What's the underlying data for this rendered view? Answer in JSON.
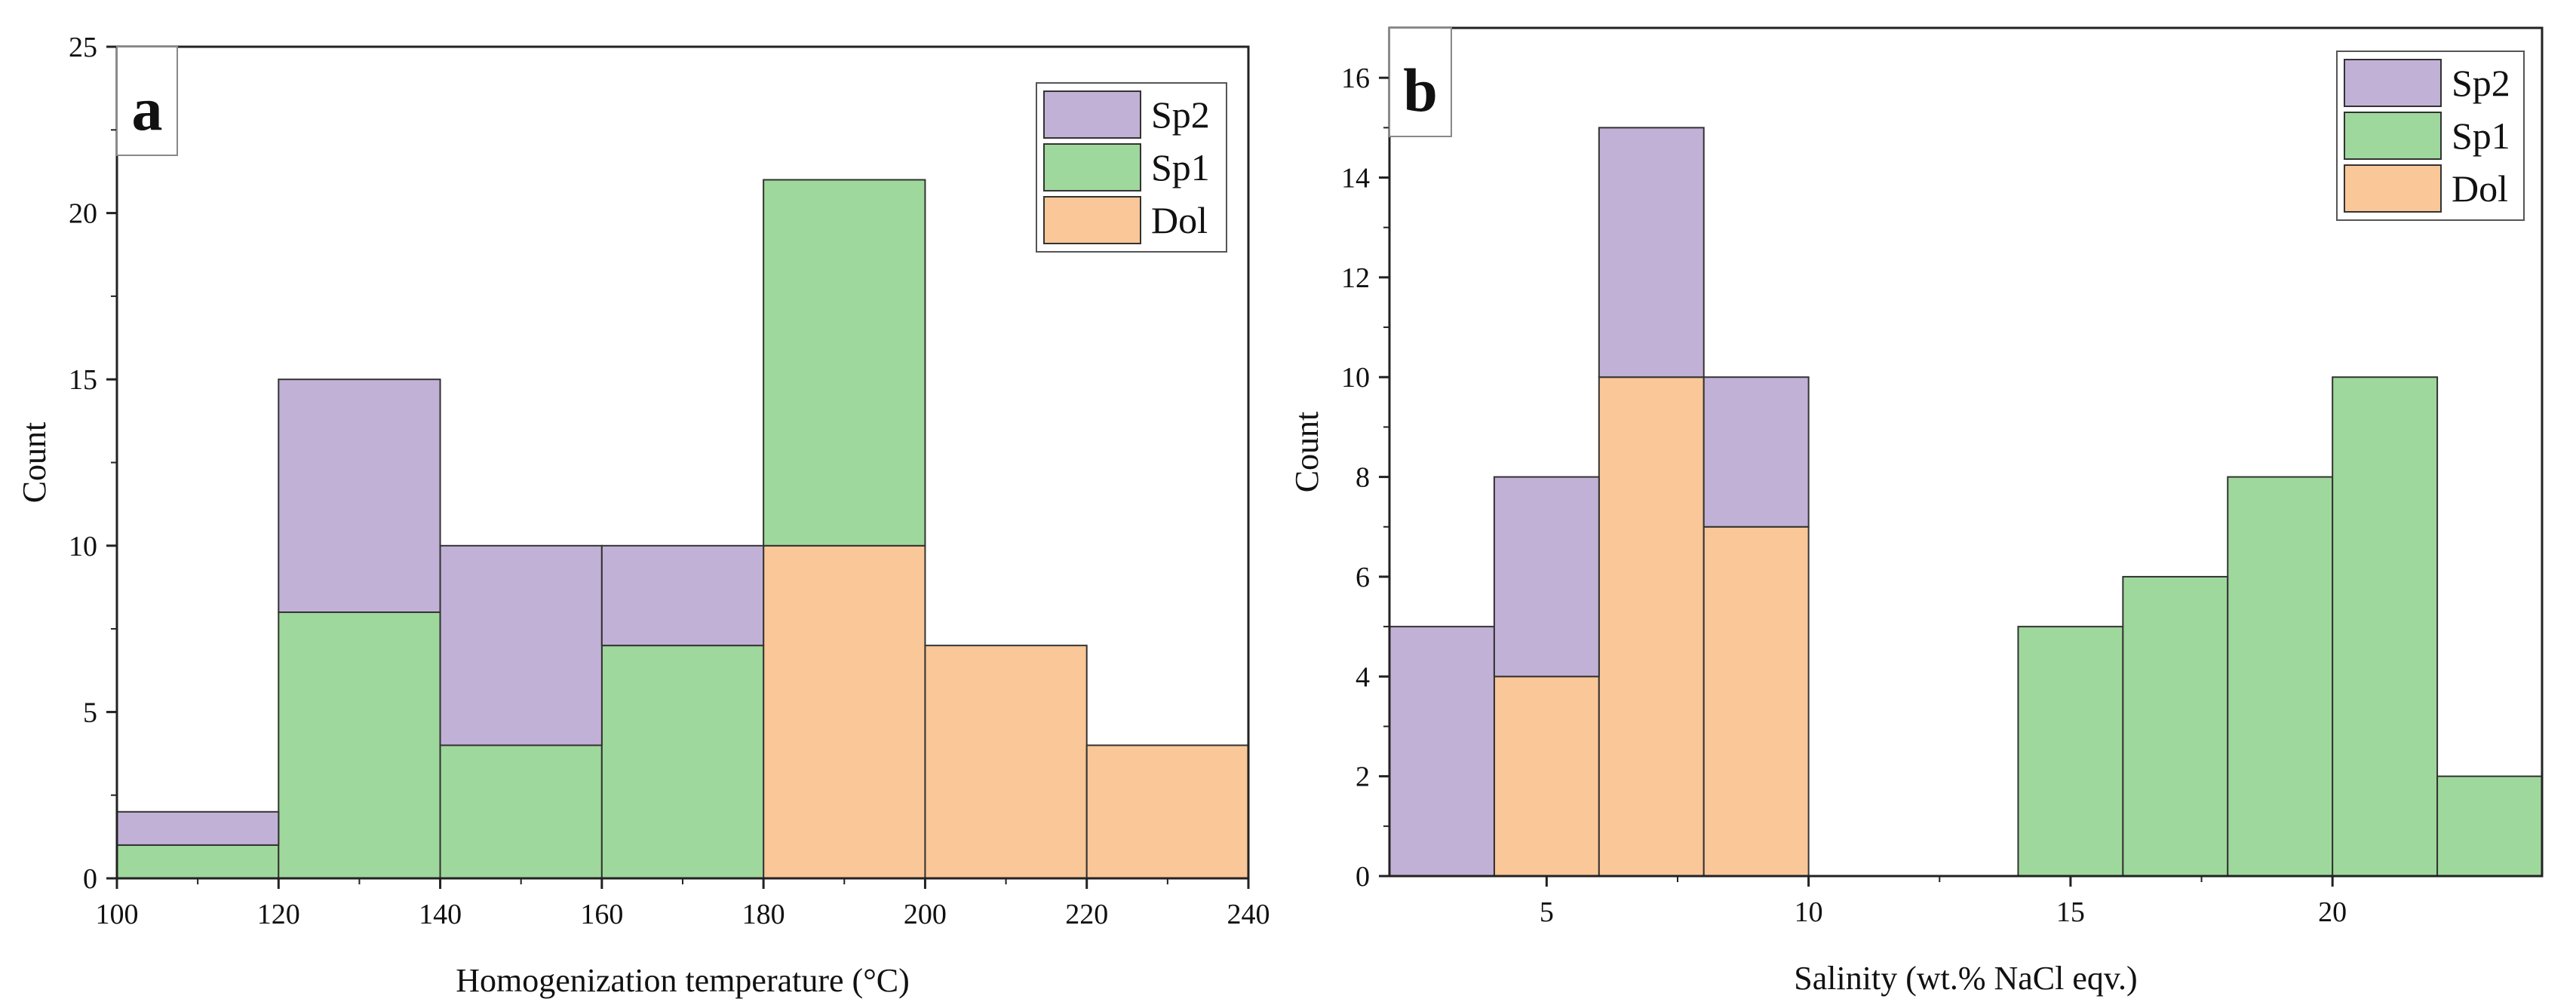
{
  "colors": {
    "Sp2": "#c2b1d6",
    "Sp1": "#9fd89c",
    "Dol": "#f9c798",
    "axis": "#222222",
    "bar_stroke": "#333333"
  },
  "chart_data": [
    {
      "type": "bar",
      "stacked": true,
      "panel_label": "a",
      "title": "",
      "xlabel": "Homogenization temperature (°C)",
      "ylabel": "Count",
      "xlim": [
        100,
        240
      ],
      "ylim": [
        0,
        25
      ],
      "xticks": [
        100,
        120,
        140,
        160,
        180,
        200,
        220,
        240
      ],
      "xtick_labels": [
        "100",
        "120",
        "140",
        "160",
        "180",
        "200",
        "220",
        "240"
      ],
      "yticks": [
        0,
        5,
        10,
        15,
        20,
        25
      ],
      "ytick_labels": [
        "0",
        "5",
        "10",
        "15",
        "20",
        "25"
      ],
      "bins": [
        [
          100,
          120
        ],
        [
          120,
          140
        ],
        [
          140,
          160
        ],
        [
          160,
          180
        ],
        [
          180,
          200
        ],
        [
          200,
          220
        ],
        [
          220,
          240
        ]
      ],
      "series": [
        {
          "name": "Dol",
          "values": [
            0,
            0,
            0,
            0,
            10,
            7,
            4
          ]
        },
        {
          "name": "Sp1",
          "values": [
            1,
            8,
            4,
            7,
            11,
            0,
            0
          ]
        },
        {
          "name": "Sp2",
          "values": [
            1,
            7,
            6,
            3,
            0,
            0,
            0
          ]
        }
      ],
      "legend": {
        "position": "top-right",
        "entries": [
          "Sp2",
          "Sp1",
          "Dol"
        ]
      }
    },
    {
      "type": "bar",
      "stacked": true,
      "panel_label": "b",
      "title": "",
      "xlabel": "Salinity (wt.% NaCl eqv.)",
      "ylabel": "Count",
      "xlim": [
        2,
        24
      ],
      "ylim": [
        0,
        17
      ],
      "xticks": [
        5,
        10,
        15,
        20
      ],
      "xtick_labels": [
        "5",
        "10",
        "15",
        "20"
      ],
      "yticks": [
        0,
        2,
        4,
        6,
        8,
        10,
        12,
        14,
        16
      ],
      "ytick_labels": [
        "0",
        "2",
        "4",
        "6",
        "8",
        "10",
        "12",
        "14",
        "16"
      ],
      "bins": [
        [
          2,
          4
        ],
        [
          4,
          6
        ],
        [
          6,
          8
        ],
        [
          8,
          10
        ],
        [
          14,
          16
        ],
        [
          16,
          18
        ],
        [
          18,
          20
        ],
        [
          20,
          22
        ],
        [
          22,
          24
        ]
      ],
      "series": [
        {
          "name": "Dol",
          "values": [
            0,
            4,
            10,
            7,
            0,
            0,
            0,
            0,
            0
          ]
        },
        {
          "name": "Sp1",
          "values": [
            0,
            0,
            0,
            0,
            5,
            6,
            8,
            10,
            2
          ]
        },
        {
          "name": "Sp2",
          "values": [
            5,
            4,
            5,
            3,
            0,
            0,
            0,
            0,
            0
          ]
        }
      ],
      "legend": {
        "position": "top-right",
        "entries": [
          "Sp2",
          "Sp1",
          "Dol"
        ]
      }
    }
  ]
}
